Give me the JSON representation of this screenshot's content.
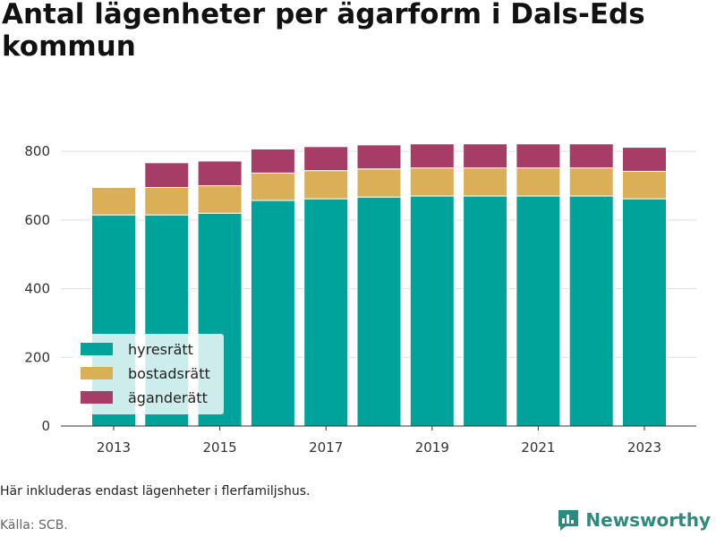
{
  "title": "Antal lägenheter per ägarform i Dals-Eds kommun",
  "note": "Här inkluderas endast lägenheter i flerfamiljshus.",
  "source": "Källa: SCB.",
  "brand": {
    "name": "Newsworthy",
    "icon": "bar-chart-logo-icon",
    "color": "#2e8a7f"
  },
  "chart_data": {
    "type": "bar",
    "stacked": true,
    "categories": [
      2013,
      2014,
      2015,
      2016,
      2017,
      2018,
      2019,
      2020,
      2021,
      2022,
      2023
    ],
    "x_ticks": [
      "2013",
      "2015",
      "2017",
      "2019",
      "2021",
      "2023"
    ],
    "series": [
      {
        "name": "hyresrätt",
        "color": "#00a39a",
        "values": [
          615,
          615,
          620,
          657,
          662,
          667,
          670,
          670,
          670,
          670,
          662
        ]
      },
      {
        "name": "bostadsrätt",
        "color": "#dbae58",
        "values": [
          80,
          80,
          80,
          80,
          82,
          82,
          82,
          82,
          82,
          82,
          80
        ]
      },
      {
        "name": "äganderätt",
        "color": "#a53d67",
        "values": [
          0,
          72,
          72,
          70,
          70,
          70,
          70,
          70,
          70,
          70,
          70
        ]
      }
    ],
    "ylim": [
      0,
      850
    ],
    "y_ticks": [
      "0",
      "200",
      "400",
      "600",
      "800"
    ],
    "xlabel": "",
    "ylabel": "",
    "grid": true,
    "legend_position": "bottom-left"
  }
}
